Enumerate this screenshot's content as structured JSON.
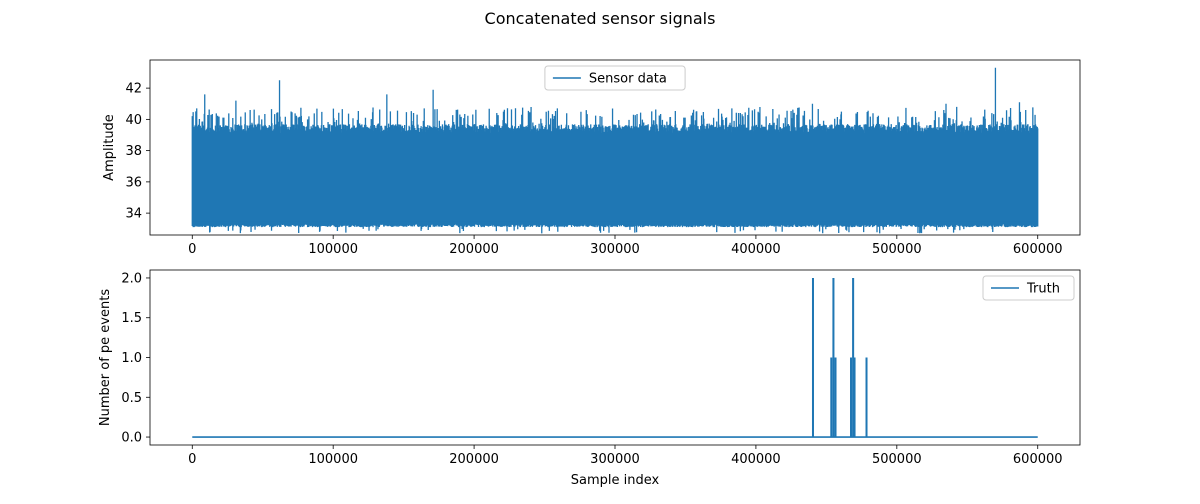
{
  "figure": {
    "suptitle": "Concatenated sensor signals"
  },
  "colors": {
    "series": "#1f77b4",
    "axes": "#000000",
    "background": "#ffffff",
    "legend_border": "#cccccc"
  },
  "chart_data": [
    {
      "type": "line",
      "title": "",
      "xlabel": "",
      "ylabel": "Amplitude",
      "xlim": [
        -30000,
        630000
      ],
      "ylim": [
        32.6,
        43.8
      ],
      "xticks": [
        0,
        100000,
        200000,
        300000,
        400000,
        500000,
        600000
      ],
      "xtick_labels": [
        "0",
        "100000",
        "200000",
        "300000",
        "400000",
        "500000",
        "600000"
      ],
      "yticks": [
        34,
        36,
        38,
        40,
        42
      ],
      "ytick_labels": [
        "34",
        "36",
        "38",
        "40",
        "42"
      ],
      "grid": false,
      "legend": "upper center",
      "series": [
        {
          "name": "Sensor data",
          "x_range": [
            0,
            600000
          ],
          "baseline_band": [
            33.2,
            39.5
          ],
          "typical_max": 40.8,
          "min": 32.7,
          "spikes": [
            {
              "x": 9000,
              "y": 41.6
            },
            {
              "x": 31000,
              "y": 41.2
            },
            {
              "x": 62000,
              "y": 42.5
            },
            {
              "x": 138000,
              "y": 41.6
            },
            {
              "x": 171000,
              "y": 41.9
            },
            {
              "x": 440000,
              "y": 41.0
            },
            {
              "x": 535000,
              "y": 41.0
            },
            {
              "x": 570000,
              "y": 43.3
            },
            {
              "x": 587000,
              "y": 41.1
            }
          ]
        }
      ]
    },
    {
      "type": "line",
      "title": "",
      "xlabel": "Sample index",
      "ylabel": "Number of pe events",
      "xlim": [
        -30000,
        630000
      ],
      "ylim": [
        -0.1,
        2.1
      ],
      "xticks": [
        0,
        100000,
        200000,
        300000,
        400000,
        500000,
        600000
      ],
      "xtick_labels": [
        "0",
        "100000",
        "200000",
        "300000",
        "400000",
        "500000",
        "600000"
      ],
      "yticks": [
        0.0,
        0.5,
        1.0,
        1.5,
        2.0
      ],
      "ytick_labels": [
        "0.0",
        "0.5",
        "1.0",
        "1.5",
        "2.0"
      ],
      "grid": false,
      "legend": "upper right",
      "series": [
        {
          "name": "Truth",
          "x_range": [
            0,
            600000
          ],
          "baseline": 0,
          "events": [
            {
              "x": 440500,
              "y": 2
            },
            {
              "x": 453500,
              "y": 1
            },
            {
              "x": 455000,
              "y": 2
            },
            {
              "x": 456500,
              "y": 1
            },
            {
              "x": 467500,
              "y": 1
            },
            {
              "x": 469000,
              "y": 2
            },
            {
              "x": 470000,
              "y": 1
            },
            {
              "x": 478500,
              "y": 1
            }
          ]
        }
      ]
    }
  ]
}
